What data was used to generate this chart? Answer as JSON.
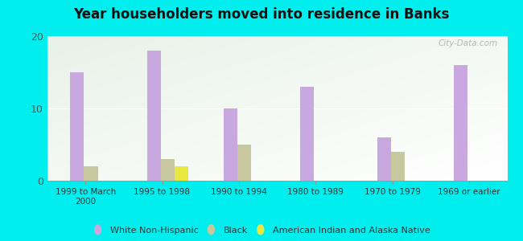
{
  "title": "Year householders moved into residence in Banks",
  "categories": [
    "1999 to March\n2000",
    "1995 to 1998",
    "1990 to 1994",
    "1980 to 1989",
    "1970 to 1979",
    "1969 or earlier"
  ],
  "white_non_hispanic": [
    15,
    18,
    10,
    13,
    6,
    16
  ],
  "black": [
    2,
    3,
    5,
    0,
    4,
    0
  ],
  "american_indian": [
    0,
    2,
    0,
    0,
    0,
    0
  ],
  "white_color": "#c9a8e0",
  "black_color": "#c8c8a0",
  "american_indian_color": "#e8e840",
  "bg_outer": "#00eeee",
  "bg_plot_light": "#e8f2e8",
  "ylim": [
    0,
    20
  ],
  "yticks": [
    0,
    10,
    20
  ],
  "bar_width": 0.18,
  "watermark": "City-Data.com"
}
